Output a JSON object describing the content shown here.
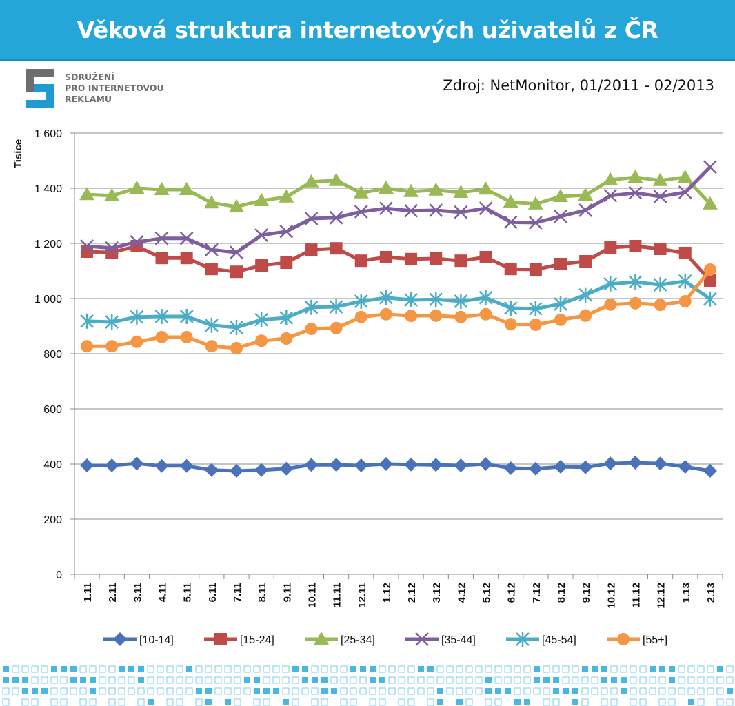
{
  "header": {
    "title": "Věková struktura internetových uživatelů z ČR"
  },
  "logo": {
    "lines": [
      "SDRUŽENÍ",
      "PRO INTERNETOVOU",
      "REKLAMU"
    ]
  },
  "source": "Zdroj: NetMonitor, 01/2011 - 02/2013",
  "colors": {
    "header_bg": "#25a6d8",
    "accent": "#1f9bd2"
  },
  "chart_data": {
    "type": "line",
    "ylabel": "Tisíce",
    "xlabel": "",
    "ylim": [
      0,
      1600
    ],
    "yticks": [
      0,
      200,
      400,
      600,
      800,
      1000,
      1200,
      1400,
      1600
    ],
    "ytick_labels": [
      "0",
      "200",
      "400",
      "600",
      "800",
      "1 000",
      "1 200",
      "1 400",
      "1 600"
    ],
    "grid": true,
    "legend": "bottom",
    "categories": [
      "1.11",
      "2.11",
      "3.11",
      "4.11",
      "5.11",
      "6.11",
      "7.11",
      "8.11",
      "9.11",
      "10.11",
      "11.11",
      "12.11",
      "1.12",
      "2.12",
      "3.12",
      "4.12",
      "5.12",
      "6.12",
      "7.12",
      "8.12",
      "9.12",
      "10.12",
      "11.12",
      "12.12",
      "1.13",
      "2.13"
    ],
    "series": [
      {
        "name": "[10-14]",
        "color": "#4a72b8",
        "marker": "diamond",
        "values": [
          395,
          395,
          402,
          393,
          393,
          378,
          375,
          378,
          383,
          397,
          397,
          395,
          400,
          398,
          397,
          395,
          400,
          385,
          383,
          390,
          388,
          402,
          405,
          402,
          390,
          375
        ]
      },
      {
        "name": "[15-24]",
        "color": "#be4b48",
        "marker": "square",
        "values": [
          1170,
          1167,
          1190,
          1147,
          1147,
          1107,
          1097,
          1120,
          1130,
          1177,
          1182,
          1137,
          1150,
          1143,
          1145,
          1137,
          1150,
          1107,
          1105,
          1125,
          1135,
          1185,
          1190,
          1180,
          1165,
          1065
        ]
      },
      {
        "name": "[25-34]",
        "color": "#98b954",
        "marker": "triangle",
        "values": [
          1377,
          1373,
          1400,
          1395,
          1395,
          1347,
          1333,
          1355,
          1368,
          1423,
          1428,
          1383,
          1400,
          1388,
          1393,
          1385,
          1397,
          1350,
          1343,
          1370,
          1375,
          1430,
          1440,
          1428,
          1440,
          1343
        ]
      },
      {
        "name": "[35-44]",
        "color": "#7d5fa0",
        "marker": "x",
        "values": [
          1190,
          1183,
          1205,
          1218,
          1218,
          1177,
          1167,
          1230,
          1243,
          1290,
          1293,
          1315,
          1327,
          1318,
          1320,
          1313,
          1327,
          1277,
          1275,
          1298,
          1320,
          1373,
          1383,
          1370,
          1385,
          1477
        ]
      },
      {
        "name": "[45-54]",
        "color": "#4aacc5",
        "marker": "star",
        "values": [
          918,
          915,
          933,
          935,
          935,
          903,
          895,
          923,
          930,
          968,
          970,
          990,
          1003,
          995,
          997,
          990,
          1003,
          965,
          963,
          980,
          1013,
          1053,
          1060,
          1050,
          1063,
          998
        ]
      },
      {
        "name": "[55+]",
        "color": "#f59645",
        "marker": "circle",
        "values": [
          827,
          827,
          843,
          860,
          860,
          827,
          820,
          847,
          855,
          890,
          893,
          933,
          943,
          937,
          938,
          933,
          943,
          907,
          905,
          923,
          938,
          978,
          983,
          977,
          990,
          1105
        ]
      }
    ]
  }
}
